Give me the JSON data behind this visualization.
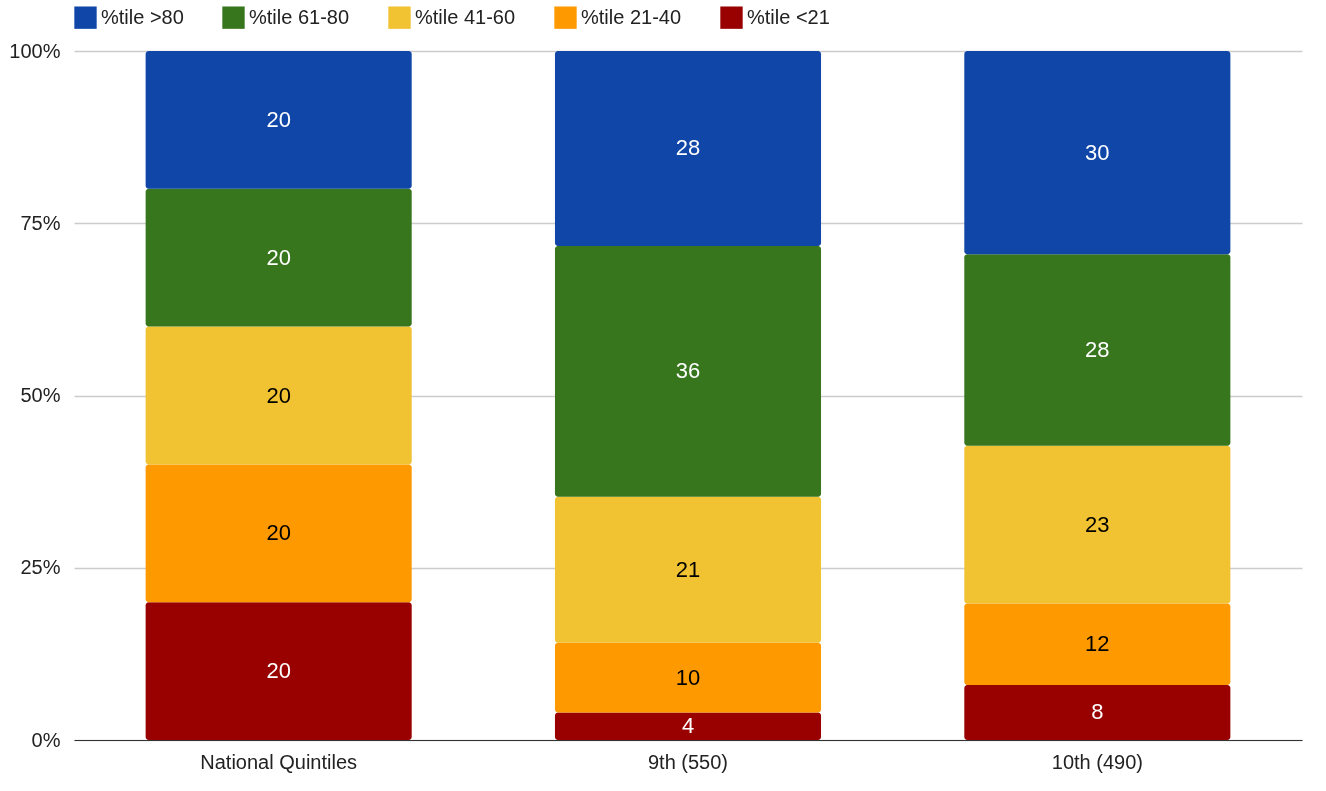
{
  "chart_data": {
    "type": "bar",
    "stacked": true,
    "categories": [
      "National Quintiles",
      "9th (550)",
      "10th (490)"
    ],
    "series": [
      {
        "name": "%tile <21",
        "color": "#990000",
        "values": [
          20,
          4.0,
          8.0
        ],
        "value_labels": [
          "20",
          "4",
          "8"
        ]
      },
      {
        "name": "%tile 21-40",
        "color": "#ff9900",
        "values": [
          20,
          10.1,
          11.8
        ],
        "value_labels": [
          "20",
          "10",
          "12"
        ]
      },
      {
        "name": "%tile 41-60",
        "color": "#f1c232",
        "values": [
          20,
          21.2,
          22.9
        ],
        "value_labels": [
          "20",
          "21",
          "23"
        ]
      },
      {
        "name": "%tile 61-80",
        "color": "#38761d",
        "values": [
          20,
          36.4,
          27.8
        ],
        "value_labels": [
          "20",
          "36",
          "28"
        ]
      },
      {
        "name": "%tile >80",
        "color": "#0f46a8",
        "values": [
          20,
          28.3,
          29.5
        ],
        "value_labels": [
          "20",
          "28",
          "30"
        ]
      }
    ],
    "ylim": [
      0,
      100
    ],
    "yticks": [
      {
        "value": 0,
        "label": "0%"
      },
      {
        "value": 25,
        "label": "25%"
      },
      {
        "value": 50,
        "label": "50%"
      },
      {
        "value": 75,
        "label": "75%"
      },
      {
        "value": 100,
        "label": "100%"
      }
    ],
    "grid": "y",
    "legend": "top"
  }
}
